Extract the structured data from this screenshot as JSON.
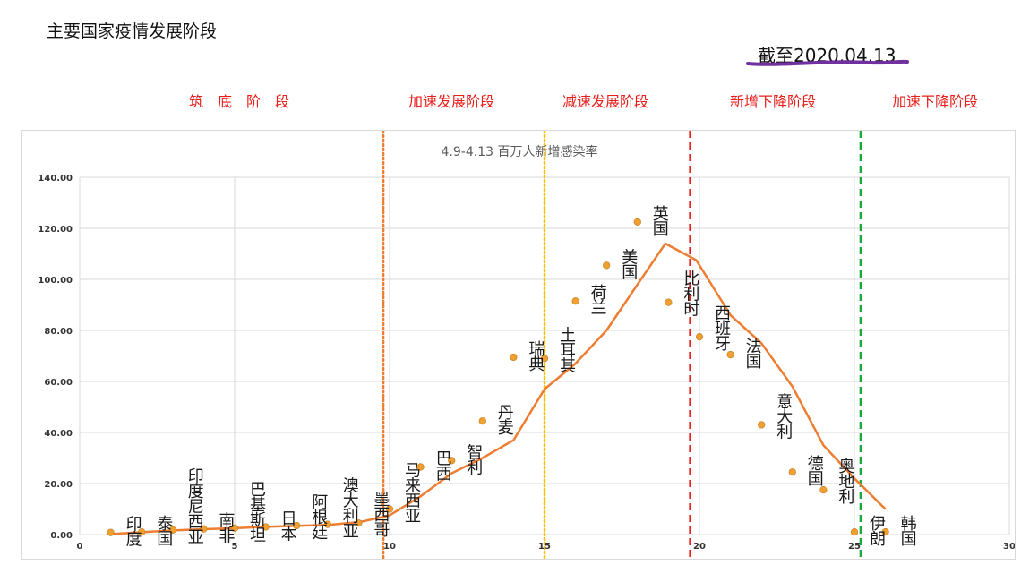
{
  "page_title": "主要国家疫情发展阶段",
  "date_note": "截至2020.04.13",
  "stages": [
    "筑　底　阶　段",
    "加速发展阶段",
    "减速发展阶段",
    "新增下降阶段",
    "加速下降阶段"
  ],
  "colors": {
    "stage_text": "#e8201c",
    "trend_line": "#ed7d31",
    "points": "#f0a030",
    "underline": "#7030a0",
    "divider_1": "#ed7d31",
    "divider_2": "#ffc000",
    "divider_3": "#e8201c",
    "divider_4": "#1aaa3c"
  },
  "chart_data": {
    "type": "scatter",
    "title": "4.9-4.13 百万人新增感染率",
    "xlim": [
      0,
      30
    ],
    "ylim": [
      0,
      140
    ],
    "x_ticks": [
      "0",
      "5",
      "10",
      "15",
      "20",
      "25",
      "30"
    ],
    "y_ticks": [
      "0.00",
      "20.00",
      "40.00",
      "60.00",
      "80.00",
      "100.00",
      "120.00",
      "140.00"
    ],
    "grid": true,
    "series": [
      {
        "points": [
          {
            "x": 1,
            "y": 0.8,
            "label": "印度"
          },
          {
            "x": 2,
            "y": 1.0,
            "label": "泰国"
          },
          {
            "x": 3,
            "y": 1.8,
            "label": "印度尼西亚"
          },
          {
            "x": 4,
            "y": 2.2,
            "label": "南非"
          },
          {
            "x": 5,
            "y": 2.5,
            "label": "巴基斯坦"
          },
          {
            "x": 6,
            "y": 3.0,
            "label": "日本"
          },
          {
            "x": 7,
            "y": 3.5,
            "label": "阿根廷"
          },
          {
            "x": 8,
            "y": 4.0,
            "label": "澳大利亚"
          },
          {
            "x": 9,
            "y": 4.5,
            "label": "墨西哥"
          },
          {
            "x": 10,
            "y": 10.0,
            "label": "马来西亚"
          },
          {
            "x": 11,
            "y": 26.5,
            "label": "巴西"
          },
          {
            "x": 12,
            "y": 29.0,
            "label": "智利"
          },
          {
            "x": 13,
            "y": 44.5,
            "label": "丹麦"
          },
          {
            "x": 14,
            "y": 69.5,
            "label": "瑞典"
          },
          {
            "x": 15,
            "y": 69.0,
            "label": "土耳其"
          },
          {
            "x": 16,
            "y": 91.5,
            "label": "荷兰"
          },
          {
            "x": 17,
            "y": 105.5,
            "label": "美国"
          },
          {
            "x": 18,
            "y": 122.5,
            "label": "英国"
          },
          {
            "x": 19,
            "y": 91.0,
            "label": "比利时"
          },
          {
            "x": 20,
            "y": 77.5,
            "label": "西班牙"
          },
          {
            "x": 21,
            "y": 70.5,
            "label": "法国"
          },
          {
            "x": 22,
            "y": 43.0,
            "label": "意大利"
          },
          {
            "x": 23,
            "y": 24.5,
            "label": "德国"
          },
          {
            "x": 24,
            "y": 17.5,
            "label": "奥地利"
          },
          {
            "x": 25,
            "y": 1.0,
            "label": "伊朗"
          },
          {
            "x": 26,
            "y": 1.0,
            "label": "韩国"
          }
        ]
      }
    ],
    "trendline": [
      {
        "x": 1,
        "y": 0.2
      },
      {
        "x": 2,
        "y": 0.9
      },
      {
        "x": 3,
        "y": 1.6
      },
      {
        "x": 4,
        "y": 2.1
      },
      {
        "x": 5,
        "y": 2.5
      },
      {
        "x": 6,
        "y": 3.0
      },
      {
        "x": 7,
        "y": 3.4
      },
      {
        "x": 8,
        "y": 3.8
      },
      {
        "x": 9,
        "y": 4.8
      },
      {
        "x": 10,
        "y": 7.5
      },
      {
        "x": 11,
        "y": 15.0
      },
      {
        "x": 12,
        "y": 24.0
      },
      {
        "x": 13,
        "y": 30.0
      },
      {
        "x": 14,
        "y": 37.0
      },
      {
        "x": 15,
        "y": 57.0
      },
      {
        "x": 16,
        "y": 67.0
      },
      {
        "x": 17,
        "y": 80.0
      },
      {
        "x": 18,
        "y": 98.0
      },
      {
        "x": 18.9,
        "y": 114.0
      },
      {
        "x": 19.9,
        "y": 107.5
      },
      {
        "x": 21,
        "y": 86.0
      },
      {
        "x": 22,
        "y": 75.0
      },
      {
        "x": 23,
        "y": 58.0
      },
      {
        "x": 24,
        "y": 35.0
      },
      {
        "x": 25,
        "y": 22.0
      },
      {
        "x": 26,
        "y": 10.0
      }
    ],
    "dividers": [
      {
        "x": 9.8,
        "style": "dotted",
        "color_key": "divider_1"
      },
      {
        "x": 15.0,
        "style": "dotted",
        "color_key": "divider_2"
      },
      {
        "x": 19.7,
        "style": "dashed",
        "color_key": "divider_3"
      },
      {
        "x": 25.2,
        "style": "dashed",
        "color_key": "divider_4"
      }
    ]
  }
}
